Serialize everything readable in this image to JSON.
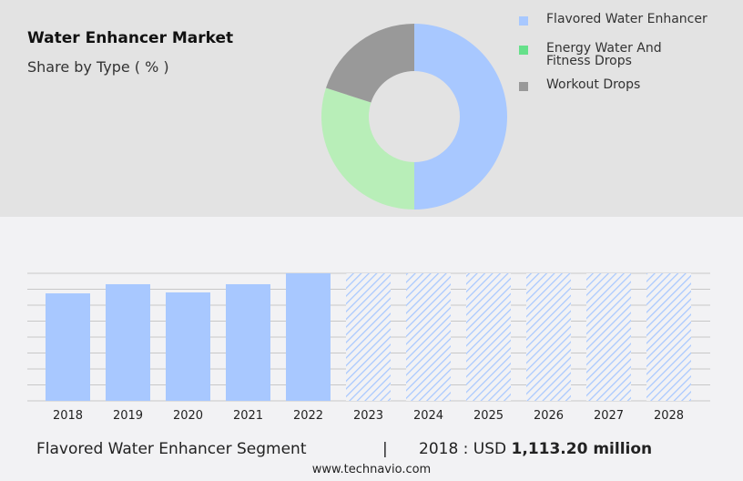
{
  "header": {
    "title": "Water Enhancer Market",
    "subtitle": "Share by Type ( % )"
  },
  "chart_data": [
    {
      "type": "pie",
      "variant": "donut",
      "slices": [
        {
          "name": "Flavored Water Enhancer",
          "value": 50,
          "color": "#a8c8ff"
        },
        {
          "name": "Energy Water And Fitness Drops",
          "value": 30,
          "color": "#b8eeb8"
        },
        {
          "name": "Workout Drops",
          "value": 20,
          "color": "#999999"
        }
      ],
      "legend_colors": [
        "#a8c8ff",
        "#66e08a",
        "#999999"
      ],
      "legend": "right"
    },
    {
      "type": "bar",
      "categories": [
        "2018",
        "2019",
        "2020",
        "2021",
        "2022",
        "2023",
        "2024",
        "2025",
        "2026",
        "2027",
        "2028"
      ],
      "values": [
        1113.2,
        1208,
        1123,
        1208,
        1321,
        null,
        null,
        null,
        null,
        null,
        null
      ],
      "forecast_from": "2023",
      "color": "#a8c8ff",
      "grid": true,
      "ylim": [
        0,
        1321
      ]
    }
  ],
  "footer": {
    "segment": "Flavored Water Enhancer Segment",
    "separator": "|",
    "year_label": "2018 : USD",
    "value": "1,113.20 million",
    "url": "www.technavio.com"
  }
}
